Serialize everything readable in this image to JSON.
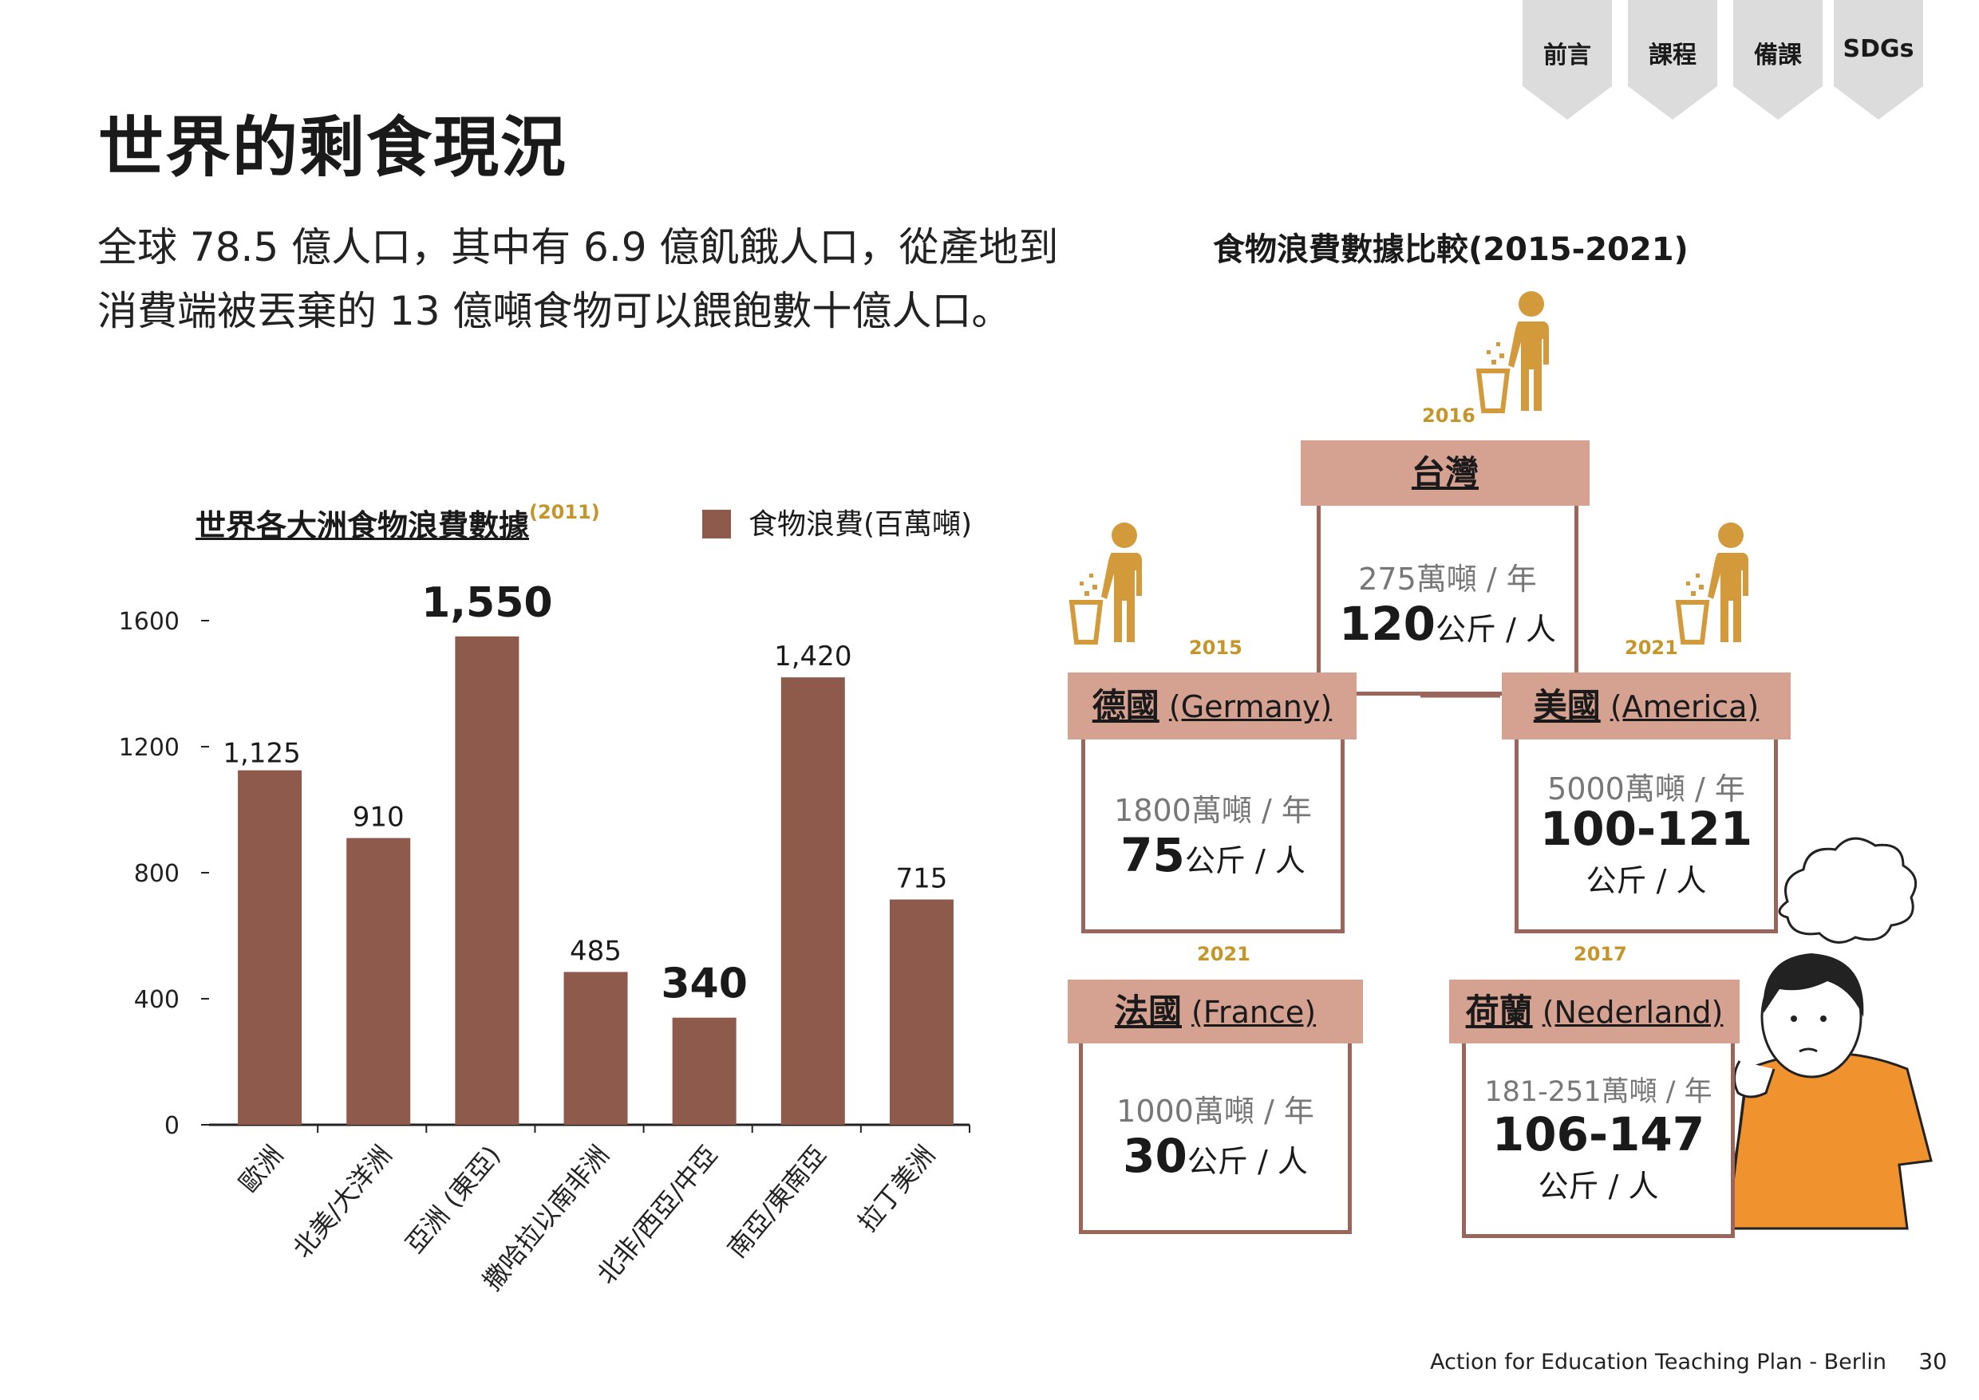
{
  "nav": {
    "tabs": [
      {
        "label": "前言"
      },
      {
        "label": "課程"
      },
      {
        "label": "備課"
      },
      {
        "label": "SDGs"
      }
    ]
  },
  "page": {
    "title": "世界的剩食現況",
    "intro_line1": "全球 78.5 億人口，其中有 6.9 億飢餓人口，從產地到",
    "intro_line2": "消費端被丟棄的 13 億噸食物可以餵飽數十億人口。",
    "footer": "Action for Education Teaching Plan - Berlin",
    "page_number": "30"
  },
  "chart_data": {
    "type": "bar",
    "title": "世界各大洲食物浪費數據",
    "title_year": "(2011)",
    "legend": [
      {
        "name": "食物浪費(百萬噸)",
        "color": "#8e5a4c"
      }
    ],
    "categories": [
      "歐洲",
      "北美/大洋洲",
      "亞洲 (東亞)",
      "撒哈拉以南非洲",
      "北非/西亞/中亞",
      "南亞/東南亞",
      "拉丁美洲"
    ],
    "series": [
      {
        "name": "食物浪費(百萬噸)",
        "values": [
          1125,
          910,
          1550,
          485,
          340,
          1420,
          715
        ]
      }
    ],
    "value_labels": [
      "1,125",
      "910",
      "1,550",
      "485",
      "340",
      "1,420",
      "715"
    ],
    "emphasized": [
      false,
      false,
      true,
      false,
      true,
      false,
      false
    ],
    "yticks": [
      "0",
      "400",
      "800",
      "1200",
      "1600"
    ],
    "ylim": [
      0,
      1600
    ],
    "grid": false,
    "bar_color": "#8e5a4c"
  },
  "comparison": {
    "title": "食物浪費數據比較(2015-2021)",
    "countries": [
      {
        "key": "taiwan",
        "name_zh": "台灣",
        "name_en": "",
        "year": "2016",
        "tons": "275萬噸 / 年",
        "kg_big": "120",
        "kg_unit": "公斤 / 人"
      },
      {
        "key": "germany",
        "name_zh": "德國",
        "name_en": "(Germany)",
        "year": "2015",
        "tons": "1800萬噸 / 年",
        "kg_big": "75",
        "kg_unit": "公斤 / 人"
      },
      {
        "key": "america",
        "name_zh": "美國",
        "name_en": "(America)",
        "year": "2021",
        "tons": "5000萬噸 / 年",
        "kg_big": "100-121",
        "kg_unit": "公斤 / 人"
      },
      {
        "key": "france",
        "name_zh": "法國",
        "name_en": "(France)",
        "year": "2021",
        "tons": "1000萬噸 / 年",
        "kg_big": "30",
        "kg_unit": "公斤 / 人"
      },
      {
        "key": "nederland",
        "name_zh": "荷蘭",
        "name_en": "(Nederland)",
        "year": "2017",
        "tons": "181-251萬噸 / 年",
        "kg_big": "106-147",
        "kg_unit": "公斤 / 人"
      }
    ]
  },
  "colors": {
    "accent_gold": "#c4962a",
    "header_pink": "#d5a191",
    "box_border": "#9a655a",
    "bar": "#8e5a4c",
    "tab_grey": "#dcdcdc"
  },
  "icons": [
    "person-discarding-food-icon",
    "thinking-person-illustration",
    "thought-bubble-icon"
  ]
}
